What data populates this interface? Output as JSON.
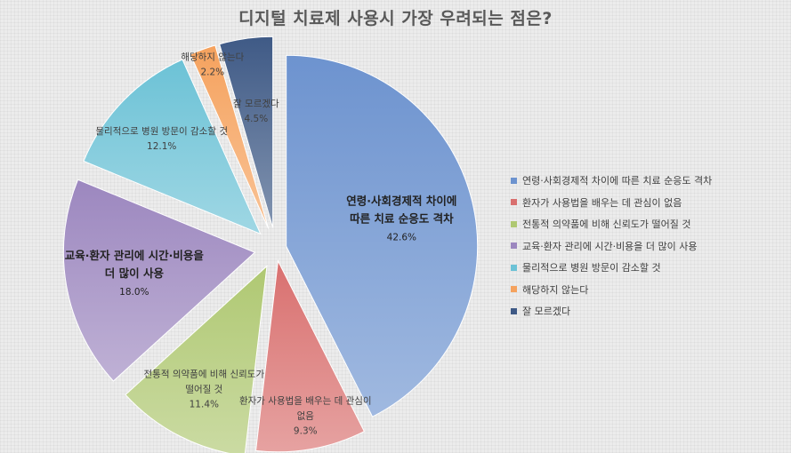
{
  "chart_data": {
    "type": "pie",
    "title": "디지털 치료제 사용시 가장 우려되는 점은?",
    "unit": "%",
    "slices": [
      {
        "name": "연령·사회경제적 차이에 따른 치료 순응도 격차",
        "label_lines": [
          "연령·사회경제적 차이에",
          "따른 치료 순응도 격차"
        ],
        "value": 42.6,
        "value_label": "42.6%",
        "color": "#6d93cf"
      },
      {
        "name": "환자가 사용법을 배우는 데 관심이 없음",
        "label_lines": [
          "환자가 사용법을 배우는 데 관심이",
          "없음"
        ],
        "value": 9.3,
        "value_label": "9.3%",
        "color": "#d9706f"
      },
      {
        "name": "전통적 의약품에 비해 신뢰도가 떨어질 것",
        "label_lines": [
          "전통적 의약품에 비해 신뢰도가",
          "떨어질 것"
        ],
        "value": 11.4,
        "value_label": "11.4%",
        "color": "#afc872"
      },
      {
        "name": "교육·환자 관리에 시간·비용을 더 많이 사용",
        "label_lines": [
          "교육·환자 관리에 시간·비용을",
          "더 많이 사용"
        ],
        "value": 18.0,
        "value_label": "18.0%",
        "color": "#9c87bf"
      },
      {
        "name": "물리적으로 병원 방문이 감소할 것",
        "label_lines": [
          "물리적으로 병원 방문이 감소할 것"
        ],
        "value": 12.1,
        "value_label": "12.1%",
        "color": "#6cc2d6"
      },
      {
        "name": "해당하지 않는다",
        "label_lines": [
          "해당하지 않는다"
        ],
        "value": 2.2,
        "value_label": "2.2%",
        "color": "#f5a25e"
      },
      {
        "name": "잘 모르겠다",
        "label_lines": [
          "잘 모르겠다"
        ],
        "value": 4.5,
        "value_label": "4.5%",
        "color": "#3f5a86"
      }
    ],
    "legend": {
      "position": "right",
      "entries": [
        "연령·사회경제적 차이에 따른 치료 순응도 격차",
        "환자가 사용법을 배우는 데 관심이 없음",
        "전통적 의약품에 비해 신뢰도가 떨어질 것",
        "교육·환자 관리에 시간·비용을 더 많이 사용",
        "물리적으로 병원 방문이 감소할 것",
        "해당하지 않는다",
        "잘 모르겠다"
      ]
    },
    "exploded": true
  }
}
